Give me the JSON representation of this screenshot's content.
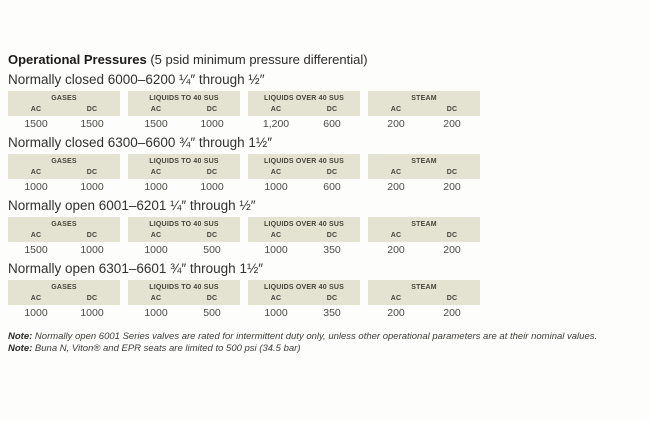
{
  "page": {
    "title_bold": "Operational Pressures",
    "title_rest": " (5 psid minimum pressure differential)"
  },
  "column_groups": [
    {
      "label": "GASES",
      "sub": [
        "AC",
        "DC"
      ]
    },
    {
      "label": "LIQUIDS TO 40 SUS",
      "sub": [
        "AC",
        "DC"
      ]
    },
    {
      "label": "LIQUIDS OVER 40 SUS",
      "sub": [
        "AC",
        "DC"
      ]
    },
    {
      "label": "STEAM",
      "sub": [
        "AC",
        "DC"
      ]
    }
  ],
  "sections": [
    {
      "heading": "Normally closed 6000–6200 ¼″ through ½″",
      "values": [
        "1500",
        "1500",
        "1500",
        "1000",
        "1,200",
        "600",
        "200",
        "200"
      ]
    },
    {
      "heading": "Normally closed 6300–6600 ¾″ through 1½″",
      "values": [
        "1000",
        "1000",
        "1000",
        "1000",
        "1000",
        "600",
        "200",
        "200"
      ]
    },
    {
      "heading": "Normally open 6001–6201 ¼″ through ½″",
      "values": [
        "1500",
        "1000",
        "1000",
        "500",
        "1000",
        "350",
        "200",
        "200"
      ]
    },
    {
      "heading": "Normally open 6301–6601 ¾″ through 1½″",
      "values": [
        "1000",
        "1000",
        "1000",
        "500",
        "1000",
        "350",
        "200",
        "200"
      ]
    }
  ],
  "notes": [
    {
      "label": "Note:",
      "text": " Normally open 6001 Series valves are rated for intermittent duty only, unless other operational parameters are at their nominal values."
    },
    {
      "label": "Note:",
      "text": " Buna N, Viton® and EPR seats are limited to 500 psi (34.5 bar)"
    }
  ]
}
